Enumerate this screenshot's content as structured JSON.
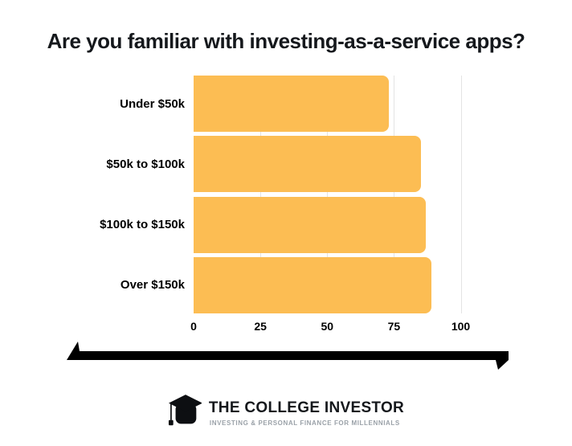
{
  "page": {
    "background": "#ffffff"
  },
  "title": "Are you familiar with investing-as-a-service apps?",
  "chart_data": {
    "type": "bar",
    "orientation": "horizontal",
    "title": "Are you familiar with investing-as-a-service apps?",
    "categories": [
      "Under $50k",
      "$50k to $100k",
      "$100k to $150k",
      "Over $150k"
    ],
    "values": [
      73,
      85,
      87,
      89
    ],
    "xlabel": "",
    "ylabel": "",
    "xlim": [
      0,
      100
    ],
    "xticks": [
      0,
      25,
      50,
      75,
      100
    ],
    "grid": true,
    "legend": "none",
    "bar_color": "#FCBD53",
    "gridline_color": "#e4e4e4",
    "label_color": "#000000"
  },
  "footer": {
    "divider_icon": "double-ended-arrow-line",
    "logo": {
      "icon": "graduation-cap-icon",
      "name": "THE COLLEGE INVESTOR",
      "tagline": "INVESTING & PERSONAL FINANCE FOR MILLENNIALS",
      "tagline_color": "#9aa1a8",
      "text_color": "#15181c"
    }
  }
}
